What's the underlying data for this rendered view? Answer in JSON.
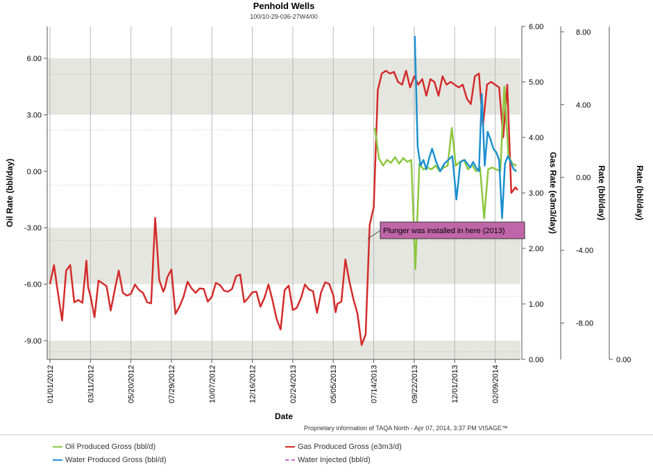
{
  "chart_data": {
    "type": "line",
    "title": "Penhold Wells",
    "subtitle": "100/10-29-036-27W4/00",
    "xlabel": "Date",
    "ylabel_left": "Oil Rate (bbl/day)",
    "ylabel_gas": "Gas Rate (e3m3/day)",
    "ylabel_rate1": "Rate (bbl/day)",
    "ylabel_rate2": "Rate (bbl/day)",
    "footnote": "Proprietary information of TAQA North - Apr 07, 2014, 3:37 PM  VISAGE™",
    "annotation": "Plunger was installed in here (2013)",
    "x_range_days": [
      0,
      809
    ],
    "x_ticks": [
      {
        "day": 0,
        "label": "01/01/2012"
      },
      {
        "day": 70,
        "label": "03/11/2012"
      },
      {
        "day": 140,
        "label": "05/20/2012"
      },
      {
        "day": 210,
        "label": "07/29/2012"
      },
      {
        "day": 280,
        "label": "10/07/2012"
      },
      {
        "day": 350,
        "label": "12/16/2012"
      },
      {
        "day": 420,
        "label": "02/24/2013"
      },
      {
        "day": 490,
        "label": "05/05/2013"
      },
      {
        "day": 560,
        "label": "07/14/2013"
      },
      {
        "day": 630,
        "label": "09/22/2013"
      },
      {
        "day": 700,
        "label": "12/01/2013"
      },
      {
        "day": 770,
        "label": "02/09/2014"
      }
    ],
    "left_axis": {
      "range": [
        -10.0,
        7.7
      ],
      "ticks": [
        "-9.00",
        "-6.00",
        "-3.00",
        "0.00",
        "3.00",
        "6.00"
      ],
      "tick_values": [
        -9,
        -6,
        -3,
        0,
        3,
        6
      ]
    },
    "gas_axis": {
      "range": [
        0,
        6
      ],
      "ticks": [
        "0.00",
        "1.00",
        "2.00",
        "3.00",
        "4.00",
        "5.00",
        "6.00"
      ],
      "tick_values": [
        0,
        1,
        2,
        3,
        4,
        5,
        6
      ]
    },
    "rate_axis_1": {
      "range": [
        -10,
        8.3
      ],
      "ticks": [
        "-8.00",
        "-4.00",
        "0.00",
        "4.00",
        "8.00"
      ],
      "tick_values": [
        -8,
        -4,
        0,
        4,
        8
      ]
    },
    "rate_axis_2": {
      "ticks": [
        "0.00"
      ]
    },
    "series": [
      {
        "name": "Gas Produced Gross (e3m3/d)",
        "color": "#d42a2a",
        "axis": "gas",
        "x": [
          0,
          7,
          14,
          21,
          28,
          35,
          42,
          49,
          56,
          63,
          66,
          70,
          77,
          84,
          91,
          98,
          105,
          112,
          119,
          126,
          133,
          140,
          147,
          154,
          161,
          168,
          175,
          182,
          189,
          196,
          199,
          203,
          210,
          217,
          224,
          231,
          238,
          245,
          252,
          259,
          266,
          273,
          280,
          287,
          294,
          301,
          308,
          315,
          322,
          329,
          336,
          343,
          350,
          357,
          364,
          371,
          378,
          385,
          392,
          399,
          406,
          413,
          420,
          427,
          434,
          441,
          448,
          455,
          462,
          469,
          476,
          483,
          490,
          494,
          497,
          504,
          511,
          518,
          525,
          532,
          539,
          546,
          553,
          560,
          567,
          574,
          581,
          588,
          595,
          602,
          609,
          616,
          623,
          630,
          637,
          644,
          651,
          658,
          665,
          672,
          679,
          686,
          693,
          700,
          707,
          714,
          721,
          728,
          735,
          742,
          749,
          756,
          763,
          770,
          777,
          784,
          791,
          798,
          805,
          809
        ],
        "values": [
          1.36,
          1.7,
          1.18,
          0.7,
          1.6,
          1.7,
          1.03,
          1.07,
          1.02,
          1.78,
          1.3,
          1.15,
          0.76,
          1.42,
          1.37,
          1.32,
          0.88,
          1.25,
          1.6,
          1.2,
          1.15,
          1.18,
          1.35,
          1.25,
          1.2,
          1.03,
          1.01,
          2.55,
          1.43,
          1.22,
          1.3,
          1.48,
          1.62,
          0.82,
          0.95,
          1.13,
          1.4,
          1.28,
          1.2,
          1.28,
          1.27,
          1.04,
          1.13,
          1.38,
          1.34,
          1.24,
          1.22,
          1.27,
          1.5,
          1.53,
          1.03,
          1.11,
          1.21,
          1.22,
          0.95,
          1.11,
          1.35,
          1.06,
          0.73,
          0.54,
          1.25,
          1.33,
          0.89,
          0.93,
          1.1,
          1.35,
          1.26,
          1.23,
          0.84,
          1.21,
          1.39,
          1.36,
          1.16,
          0.85,
          1.0,
          1.04,
          1.8,
          1.4,
          1.08,
          0.82,
          0.26,
          0.45,
          2.42,
          2.75,
          4.85,
          5.15,
          5.2,
          5.15,
          5.18,
          5.0,
          4.95,
          5.2,
          4.9,
          5.1,
          4.95,
          5.05,
          4.75,
          5.05,
          5.0,
          4.75,
          5.1,
          4.95,
          5.0,
          4.95,
          4.9,
          4.95,
          4.7,
          4.6,
          5.1,
          5.15,
          4.2,
          4.95,
          5.0,
          4.95,
          4.9,
          4.0,
          4.95,
          3.0,
          3.1,
          3.05
        ]
      },
      {
        "name": "Oil Produced Gross (bbl/d)",
        "color": "#8cc63e",
        "axis": "oil",
        "x": [
          562,
          569,
          576,
          583,
          590,
          597,
          604,
          611,
          618,
          625,
          632,
          639,
          646,
          653,
          660,
          667,
          674,
          681,
          688,
          695,
          702,
          709,
          716,
          723,
          730,
          737,
          744,
          751,
          758,
          765,
          772,
          779,
          786,
          793,
          800,
          807
        ],
        "values": [
          2.3,
          0.7,
          0.3,
          0.6,
          0.45,
          0.75,
          0.4,
          0.7,
          0.5,
          0.6,
          -5.2,
          0.4,
          0.1,
          0.2,
          0.1,
          0.3,
          0.0,
          0.2,
          0.3,
          2.3,
          0.3,
          0.5,
          0.6,
          0.1,
          0.35,
          0.0,
          0.2,
          -2.5,
          0.1,
          0.2,
          0.1,
          0.0,
          4.5,
          0.8,
          0.4,
          0.3
        ]
      },
      {
        "name": "Water Produced Gross (bbl/d)",
        "color": "#1a90d0",
        "axis": "oil",
        "x": [
          631,
          636,
          641,
          646,
          651,
          656,
          661,
          668,
          675,
          682,
          689,
          696,
          703,
          710,
          717,
          722,
          727,
          732,
          737,
          742,
          747,
          752,
          757,
          762,
          767,
          772,
          777,
          782,
          787,
          792,
          797,
          802,
          807
        ],
        "values": [
          7.2,
          1.3,
          0.3,
          0.6,
          0.1,
          0.7,
          1.2,
          0.5,
          0.0,
          0.4,
          0.6,
          0.8,
          -1.5,
          0.5,
          0.6,
          0.4,
          0.2,
          0.5,
          0.2,
          0.0,
          4.1,
          0.3,
          2.1,
          1.7,
          1.2,
          1.0,
          0.6,
          -2.5,
          0.4,
          0.8,
          0.5,
          0.1,
          0.0
        ]
      },
      {
        "name": "Water Injected (bbl/d)",
        "color": "#cc66cc",
        "axis": "rate",
        "x": [],
        "values": []
      }
    ],
    "bands_left_axis": [
      [
        3,
        6
      ],
      [
        -6,
        -3
      ],
      [
        -10,
        -9
      ]
    ],
    "legend": [
      {
        "label": "Oil Produced Gross (bbl/d)",
        "color": "#8cc63e",
        "style": "solid"
      },
      {
        "label": "Water Produced Gross (bbl/d)",
        "color": "#1a90d0",
        "style": "solid"
      },
      {
        "label": "Gas Produced Gross (e3m3/d)",
        "color": "#d42a2a",
        "style": "solid"
      },
      {
        "label": "Water Injected (bbl/d)",
        "color": "#cc66cc",
        "style": "dashed"
      }
    ]
  }
}
